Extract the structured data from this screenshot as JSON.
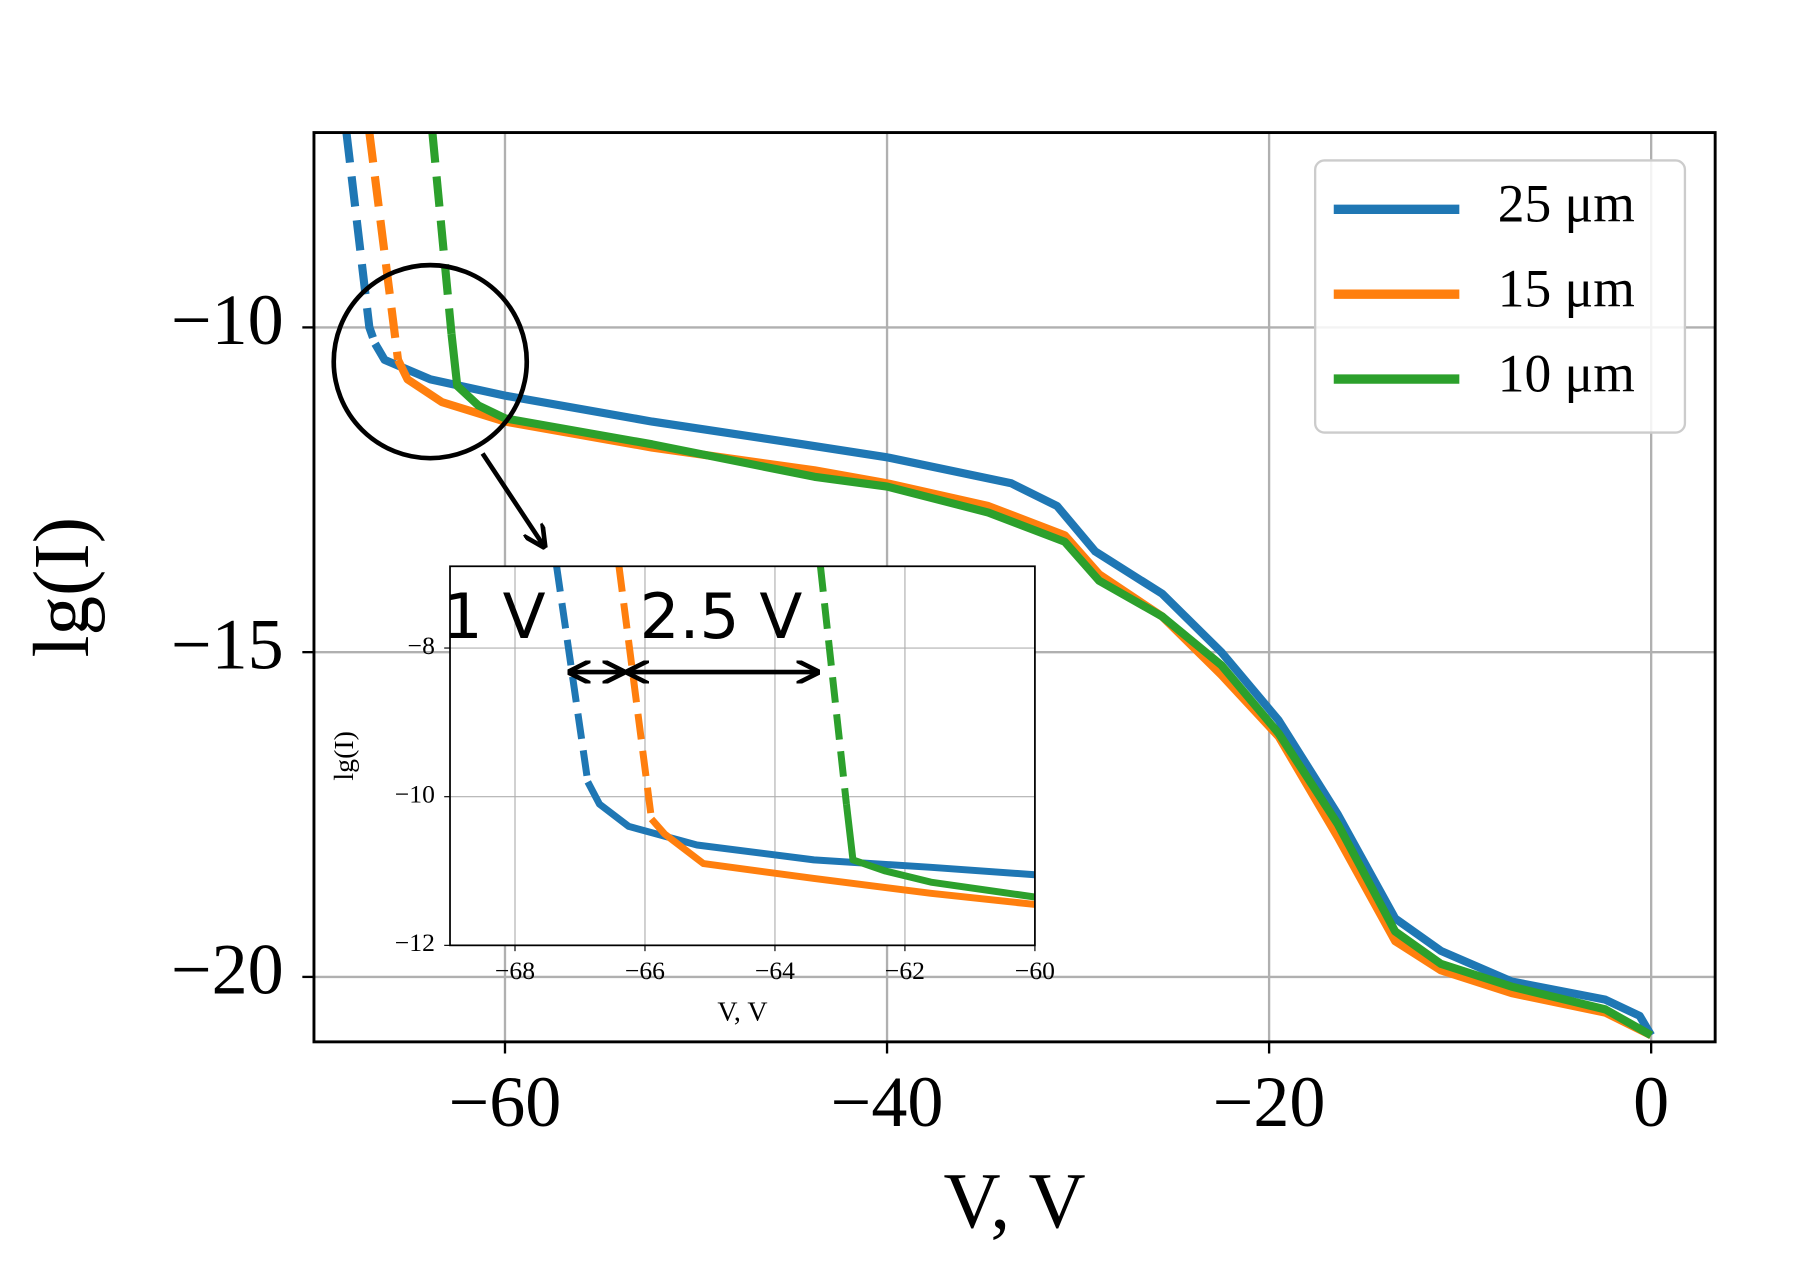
{
  "chart_data": [
    {
      "type": "line",
      "xlabel": "V, V",
      "ylabel": "lg(I)",
      "xlim": [
        -70,
        3.35
      ],
      "ylim": [
        -21,
        -7
      ],
      "xticks": [
        {
          "value": -60,
          "label": "−60"
        },
        {
          "value": -40,
          "label": "−40"
        },
        {
          "value": -20,
          "label": "−20"
        },
        0
      ],
      "yticks": [
        {
          "value": -10,
          "label": "−10"
        },
        {
          "value": -15,
          "label": "−15"
        },
        {
          "value": -20,
          "label": "−20"
        }
      ],
      "grid": true,
      "legend": "upper right",
      "series": [
        {
          "name": "25 μm",
          "color": "#1f77b4",
          "x": [
            -66.8,
            -66.3,
            -63.9,
            -60,
            -52.3,
            -44.4,
            -40,
            -33.5,
            -31.1,
            -29.1,
            -25.6,
            -22.5,
            -19.5,
            -16.4,
            -13.4,
            -11,
            -7.3,
            -2.4,
            -0.6,
            0
          ],
          "values": [
            -10.25,
            -10.5,
            -10.8,
            -11.05,
            -11.45,
            -11.8,
            -12.0,
            -12.4,
            -12.75,
            -13.45,
            -14.1,
            -15.0,
            -16.05,
            -17.5,
            -19.1,
            -19.6,
            -20.07,
            -20.35,
            -20.6,
            -20.9
          ]
        },
        {
          "name": "15 μm",
          "color": "#ff7f0e",
          "x": [
            -65.6,
            -65.1,
            -63.3,
            -60,
            -52.3,
            -43.8,
            -40,
            -34.7,
            -30.7,
            -28.9,
            -25.6,
            -22.5,
            -19.5,
            -16.4,
            -13.4,
            -11,
            -7.3,
            -2.4,
            0
          ],
          "values": [
            -10.5,
            -10.8,
            -11.15,
            -11.45,
            -11.85,
            -12.2,
            -12.4,
            -12.75,
            -13.2,
            -13.8,
            -14.45,
            -15.35,
            -16.3,
            -17.85,
            -19.45,
            -19.9,
            -20.25,
            -20.55,
            -20.9
          ]
        },
        {
          "name": "10 μm",
          "color": "#2ca02c",
          "x": [
            -62.8,
            -62.5,
            -61.4,
            -60,
            -52.3,
            -43.8,
            -40,
            -34.7,
            -30.7,
            -28.9,
            -25.6,
            -22.5,
            -19.5,
            -16.4,
            -13.4,
            -11,
            -7.3,
            -2.4,
            0
          ],
          "values": [
            -10.1,
            -10.9,
            -11.2,
            -11.4,
            -11.8,
            -12.3,
            -12.45,
            -12.85,
            -13.3,
            -13.9,
            -14.45,
            -15.2,
            -16.25,
            -17.65,
            -19.3,
            -19.8,
            -20.15,
            -20.5,
            -20.9
          ]
        },
        {
          "color": "#1f77b4",
          "linestyle": "dashed",
          "x": [
            -68.3,
            -67.1,
            -66.8
          ],
          "values": [
            -7,
            -10,
            -10.25
          ]
        },
        {
          "color": "#ff7f0e",
          "linestyle": "dashed",
          "x": [
            -67.1,
            -65.6
          ],
          "values": [
            -7,
            -10.5
          ]
        },
        {
          "color": "#2ca02c",
          "linestyle": "dashed",
          "x": [
            -63.8,
            -62.8
          ],
          "values": [
            -7,
            -10.1
          ]
        }
      ]
    },
    {
      "type": "line",
      "xlabel": "V, V",
      "ylabel": "lg(I)",
      "xlim": [
        -69,
        -60
      ],
      "ylim": [
        -12,
        -6.9
      ],
      "xticks": [
        {
          "value": -68,
          "label": "−68"
        },
        {
          "value": -66,
          "label": "−66"
        },
        {
          "value": -64,
          "label": "−64"
        },
        {
          "value": -62,
          "label": "−62"
        },
        {
          "value": -60,
          "label": "−60"
        }
      ],
      "yticks": [
        {
          "value": -8,
          "label": "−8"
        },
        {
          "value": -10,
          "label": "−10"
        },
        {
          "value": -12,
          "label": "−12"
        }
      ],
      "grid": true,
      "annotations": [
        "1 V",
        "2.5 V"
      ],
      "series": [
        {
          "color": "#1f77b4",
          "x": [
            -66.88,
            -66.7,
            -66.25,
            -65.2,
            -63.4,
            -61.6,
            -60
          ],
          "values": [
            -9.8,
            -10.1,
            -10.4,
            -10.65,
            -10.85,
            -10.95,
            -11.05
          ]
        },
        {
          "color": "#ff7f0e",
          "x": [
            -65.9,
            -65.7,
            -65.1,
            -63.4,
            -61.6,
            -60
          ],
          "values": [
            -10.3,
            -10.5,
            -10.9,
            -11.1,
            -11.3,
            -11.45
          ]
        },
        {
          "color": "#2ca02c",
          "x": [
            -62.9,
            -62.8,
            -62.3,
            -61.6,
            -60
          ],
          "values": [
            -10.1,
            -10.85,
            -11.0,
            -11.15,
            -11.35
          ]
        },
        {
          "color": "#1f77b4",
          "linestyle": "dashed",
          "x": [
            -67.36,
            -66.88
          ],
          "values": [
            -6.9,
            -9.8
          ]
        },
        {
          "color": "#ff7f0e",
          "linestyle": "dashed",
          "x": [
            -66.4,
            -65.9
          ],
          "values": [
            -6.9,
            -10.3
          ]
        },
        {
          "color": "#2ca02c",
          "linestyle": "dashed",
          "x": [
            -63.3,
            -62.9
          ],
          "values": [
            -6.9,
            -10.1
          ]
        }
      ]
    }
  ]
}
